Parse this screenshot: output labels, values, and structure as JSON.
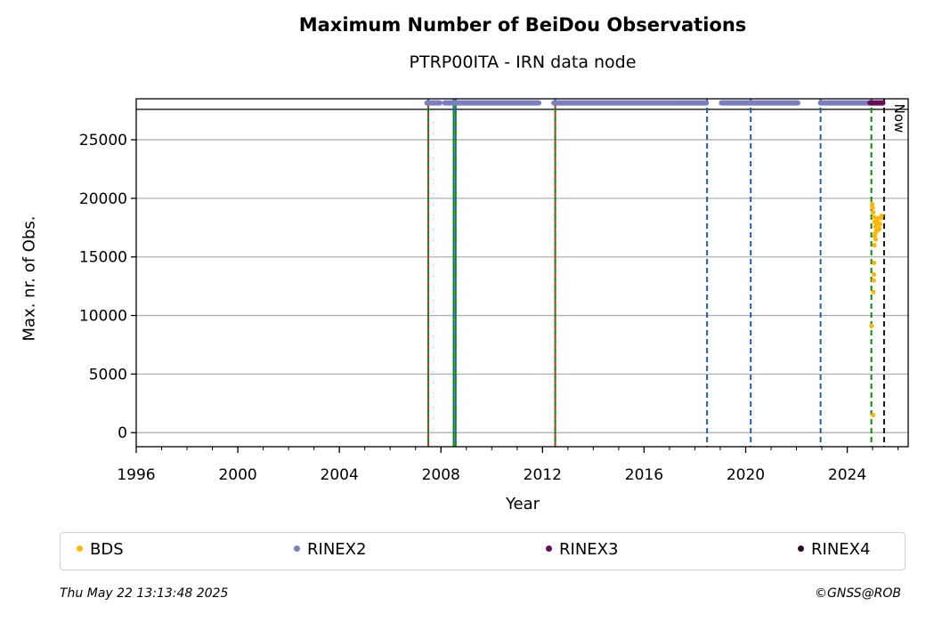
{
  "chart_data": {
    "type": "scatter",
    "title": "Maximum Number of BeiDou Observations",
    "subtitle": "PTRP00ITA - IRN data node",
    "xlabel": "Year",
    "ylabel": "Max. nr. of Obs.",
    "xlim": [
      1996,
      2026.4
    ],
    "ylim": [
      -1200,
      28500
    ],
    "xticks": [
      1996,
      2000,
      2004,
      2008,
      2012,
      2016,
      2020,
      2024
    ],
    "yticks": [
      0,
      5000,
      10000,
      15000,
      20000,
      25000
    ],
    "grid": "horizontal",
    "reference_line_y": 27600,
    "series": [
      {
        "name": "BDS",
        "color": "#ffb703",
        "points": [
          [
            2024.96,
            9100
          ],
          [
            2025.02,
            1500
          ],
          [
            2025.03,
            12000
          ],
          [
            2025.04,
            13000
          ],
          [
            2025.05,
            13500
          ],
          [
            2025.06,
            14500
          ],
          [
            2025.07,
            16000
          ],
          [
            2025.08,
            16800
          ],
          [
            2024.98,
            19500
          ],
          [
            2025.0,
            19200
          ],
          [
            2025.02,
            18800
          ],
          [
            2025.05,
            18400
          ],
          [
            2025.08,
            18000
          ],
          [
            2025.11,
            17600
          ],
          [
            2025.14,
            17200
          ],
          [
            2025.17,
            17800
          ],
          [
            2025.2,
            18300
          ],
          [
            2025.23,
            17900
          ],
          [
            2025.26,
            17400
          ],
          [
            2025.29,
            17800
          ],
          [
            2025.32,
            18300
          ],
          [
            2025.35,
            18500
          ],
          [
            2025.1,
            17000
          ],
          [
            2025.12,
            16500
          ],
          [
            2025.16,
            18100
          ],
          [
            2025.22,
            17300
          ]
        ]
      },
      {
        "name": "RINEX2",
        "color": "#7b7fbf",
        "segments": [
          [
            2007.45,
            2007.95
          ],
          [
            2008.15,
            2011.85
          ],
          [
            2012.45,
            2018.45
          ],
          [
            2019.05,
            2022.05
          ],
          [
            2022.95,
            2024.95
          ]
        ],
        "value": 28150
      },
      {
        "name": "RINEX3",
        "color": "#6a0a5c",
        "segments": [
          [
            2024.9,
            2025.4
          ]
        ],
        "value": 28150
      },
      {
        "name": "RINEX4",
        "color": "#2b0a1f",
        "segments": [],
        "value": 28150
      }
    ],
    "vlines": [
      {
        "x": 2007.5,
        "style": "red-green"
      },
      {
        "x": 2008.5,
        "style": "blue-green"
      },
      {
        "x": 2008.58,
        "style": "blue-green"
      },
      {
        "x": 2012.5,
        "style": "red-green"
      },
      {
        "x": 2018.48,
        "style": "blue"
      },
      {
        "x": 2020.2,
        "style": "blue"
      },
      {
        "x": 2022.95,
        "style": "blue"
      },
      {
        "x": 2024.95,
        "style": "green"
      },
      {
        "x": 2025.45,
        "style": "black"
      }
    ],
    "now_label": "Now",
    "legend": [
      {
        "label": "BDS",
        "color": "#ffb703"
      },
      {
        "label": "RINEX2",
        "color": "#7b7fbf"
      },
      {
        "label": "RINEX3",
        "color": "#6a0a5c"
      },
      {
        "label": "RINEX4",
        "color": "#2b0a1f"
      }
    ],
    "legend_position": "bottom"
  },
  "footer": {
    "timestamp": "Thu May 22 13:13:48 2025",
    "credit": "©GNSS@ROB"
  }
}
